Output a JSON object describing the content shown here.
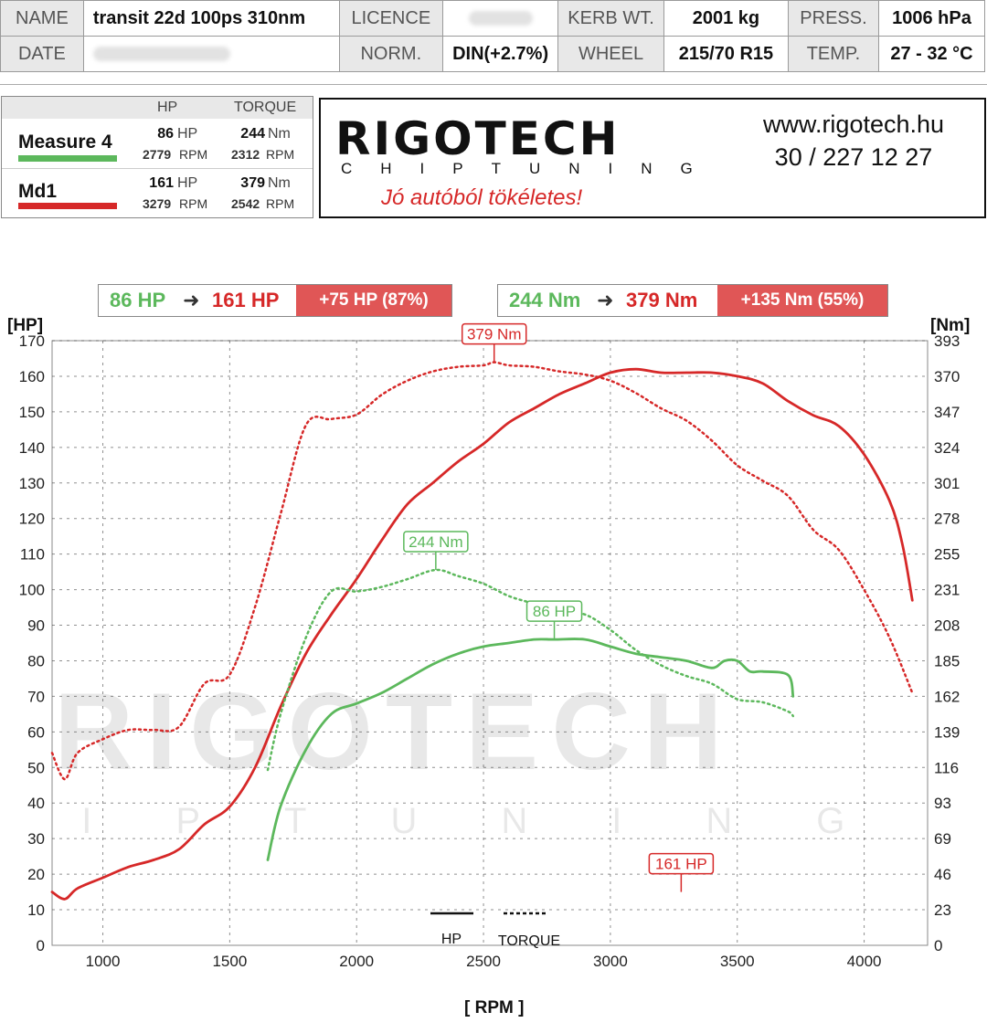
{
  "header": {
    "name_label": "NAME",
    "name_value": "transit 22d 100ps 310nm",
    "licence_label": "LICENCE",
    "kerb_label": "KERB WT.",
    "kerb_value": "2001 kg",
    "press_label": "PRESS.",
    "press_value": "1006 hPa",
    "date_label": "DATE",
    "norm_label": "NORM.",
    "norm_value": "DIN(+2.7%)",
    "wheel_label": "WHEEL",
    "wheel_value": "215/70 R15",
    "temp_label": "TEMP.",
    "temp_value": "27 - 32 °C"
  },
  "legend": {
    "hp_header": "HP",
    "torque_header": "TORQUE",
    "rows": [
      {
        "name": "Measure 4",
        "color": "#4caf50",
        "hp": "86",
        "hp_unit": "HP",
        "hp_rpm": "2779",
        "tq": "244",
        "tq_unit": "Nm",
        "tq_rpm": "2312",
        "rpm_unit": "RPM"
      },
      {
        "name": "Md1",
        "color": "#d62828",
        "hp": "161",
        "hp_unit": "HP",
        "hp_rpm": "3279",
        "tq": "379",
        "tq_unit": "Nm",
        "tq_rpm": "2542",
        "rpm_unit": "RPM"
      }
    ]
  },
  "logo": {
    "word": "RIGOTECH",
    "sub": "CHIPTUNING",
    "slogan": "Jó autóból tökéletes!",
    "url": "www.rigotech.hu",
    "phone": "30 / 227 12 27"
  },
  "comparison": {
    "hp_before": "86 HP",
    "hp_after": "161 HP",
    "hp_gain": "+75 HP  (87%)",
    "tq_before": "244 Nm",
    "tq_after": "379 Nm",
    "tq_gain": "+135 Nm  (55%)",
    "arrow": "➜"
  },
  "colors": {
    "stock": "#5cb85c",
    "tuned": "#d62828",
    "gain_bg": "#e05656"
  },
  "chart_data": {
    "type": "line",
    "xlabel": "[ RPM ]",
    "ylabel_left": "[HP]",
    "ylabel_right": "[Nm]",
    "xlim": [
      800,
      4250
    ],
    "ylim_left": [
      0,
      170
    ],
    "x_ticks": [
      1000,
      1500,
      2000,
      2500,
      3000,
      3500,
      4000
    ],
    "y_ticks_left": [
      0,
      10,
      20,
      30,
      40,
      50,
      60,
      70,
      80,
      90,
      100,
      110,
      120,
      130,
      140,
      150,
      160,
      170
    ],
    "y_ticks_right": [
      "0",
      "23",
      "46",
      "69",
      "93",
      "116",
      "139",
      "162",
      "185",
      "208",
      "231",
      "255",
      "278",
      "301",
      "324",
      "347",
      "370",
      "393"
    ],
    "grid": true,
    "watermark": {
      "word": "RIGOTECH",
      "sub": "CHIPTUNING"
    },
    "legend_items": [
      {
        "label": "HP",
        "style": "solid"
      },
      {
        "label": "TORQUE",
        "style": "dashed"
      }
    ],
    "series": [
      {
        "name": "Md1",
        "metric": "power",
        "unit": "HP",
        "style": "solid",
        "color": "#d62828",
        "x": [
          800,
          850,
          900,
          1000,
          1100,
          1200,
          1300,
          1400,
          1500,
          1600,
          1700,
          1800,
          1900,
          2000,
          2100,
          2200,
          2300,
          2400,
          2500,
          2600,
          2700,
          2800,
          2900,
          3000,
          3100,
          3200,
          3300,
          3400,
          3500,
          3600,
          3700,
          3800,
          3900,
          4000,
          4100,
          4150,
          4190
        ],
        "y": [
          15,
          13,
          16,
          19,
          22,
          24,
          27,
          34,
          39,
          50,
          67,
          82,
          93,
          103,
          114,
          124,
          130,
          136,
          141,
          147,
          151,
          155,
          158,
          161,
          162,
          161,
          161,
          161,
          160,
          158,
          153,
          149,
          146,
          138,
          125,
          113,
          97
        ]
      },
      {
        "name": "Md1",
        "metric": "torque",
        "unit": "Nm",
        "style": "dashed",
        "color": "#d62828",
        "x": [
          800,
          850,
          900,
          1000,
          1100,
          1200,
          1300,
          1400,
          1500,
          1600,
          1700,
          1800,
          1900,
          2000,
          2100,
          2200,
          2300,
          2400,
          2500,
          2542,
          2600,
          2700,
          2800,
          2900,
          3000,
          3100,
          3200,
          3300,
          3400,
          3500,
          3600,
          3700,
          3800,
          3900,
          4000,
          4100,
          4190
        ],
        "y": [
          125,
          108,
          125,
          134,
          140,
          140,
          142,
          170,
          176,
          220,
          280,
          338,
          342,
          345,
          358,
          367,
          373,
          376,
          377,
          379,
          377,
          376,
          373,
          371,
          367,
          359,
          349,
          341,
          328,
          312,
          302,
          292,
          270,
          257,
          231,
          200,
          164
        ]
      },
      {
        "name": "Measure 4",
        "metric": "power",
        "unit": "HP",
        "style": "solid",
        "color": "#5cb85c",
        "x": [
          1650,
          1700,
          1800,
          1900,
          2000,
          2100,
          2200,
          2300,
          2400,
          2500,
          2600,
          2700,
          2779,
          2900,
          3000,
          3100,
          3200,
          3300,
          3400,
          3450,
          3500,
          3550,
          3600,
          3700,
          3720
        ],
        "y": [
          24,
          39,
          55,
          65,
          68,
          71,
          75,
          79,
          82,
          84,
          85,
          86,
          86,
          86,
          84,
          82,
          81,
          80,
          78,
          80,
          80,
          77,
          77,
          76,
          70
        ]
      },
      {
        "name": "Measure 4",
        "metric": "torque",
        "unit": "Nm",
        "style": "dashed",
        "color": "#5cb85c",
        "x": [
          1650,
          1700,
          1800,
          1900,
          2000,
          2100,
          2200,
          2312,
          2400,
          2500,
          2600,
          2700,
          2800,
          2900,
          3000,
          3100,
          3200,
          3300,
          3400,
          3500,
          3600,
          3700,
          3720
        ],
        "y": [
          114,
          150,
          200,
          230,
          230,
          233,
          238,
          244,
          240,
          235,
          227,
          222,
          217,
          215,
          205,
          192,
          182,
          175,
          170,
          160,
          158,
          152,
          149
        ]
      }
    ],
    "annotations": [
      {
        "text": "379 Nm",
        "x": 2542,
        "series": 1,
        "color": "#d62828"
      },
      {
        "text": "161 HP",
        "x": 3279,
        "series": 0,
        "color": "#d62828"
      },
      {
        "text": "244 Nm",
        "x": 2312,
        "series": 3,
        "color": "#5cb85c"
      },
      {
        "text": "86 HP",
        "x": 2779,
        "series": 2,
        "color": "#5cb85c"
      }
    ]
  }
}
